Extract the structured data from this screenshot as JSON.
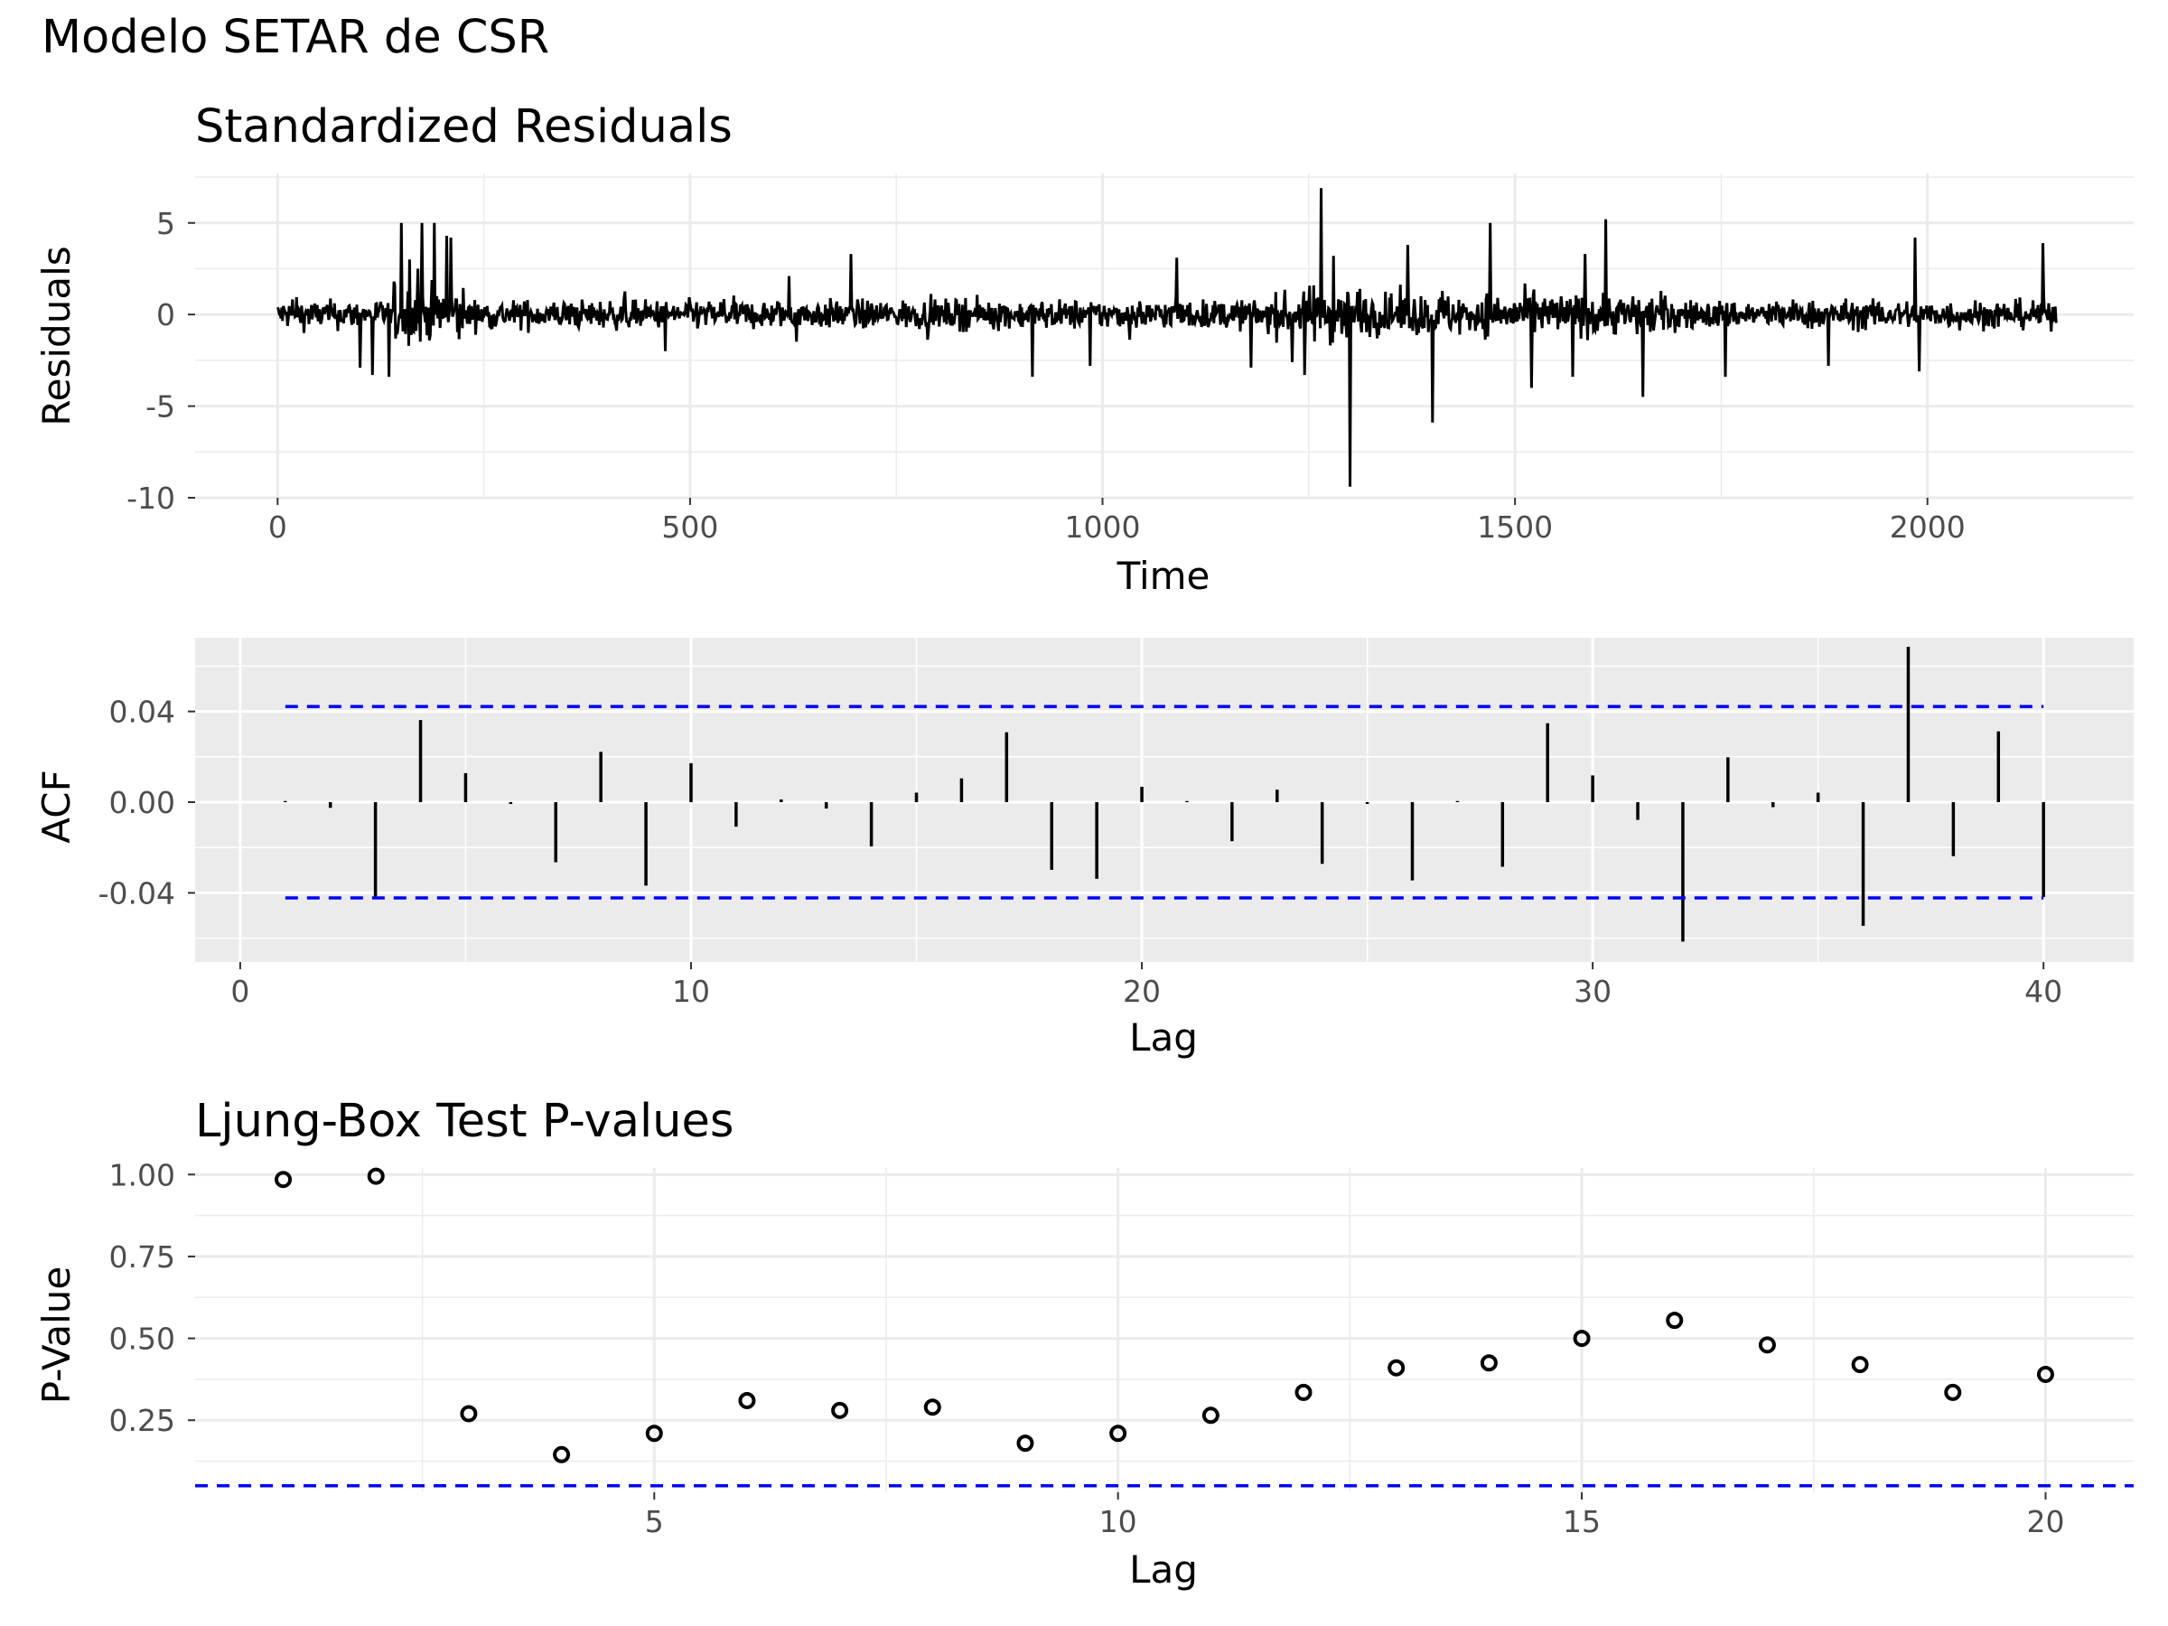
{
  "title": "Modelo SETAR de CSR",
  "chart_data": [
    {
      "type": "line",
      "title": "Standardized Residuals",
      "xlabel": "Time",
      "ylabel": "Residuals",
      "xlim": [
        -100,
        2250
      ],
      "ylim": [
        -10,
        7.7
      ],
      "xticks": [
        0,
        500,
        1000,
        1500,
        2000
      ],
      "xtick_labels": [
        "0",
        "500",
        "1000",
        "1500",
        "2000"
      ],
      "yticks": [
        -10,
        -5,
        0,
        5
      ],
      "ytick_labels": [
        "-10",
        "-5",
        "0",
        "5"
      ],
      "n": 2157,
      "series_note": "dense residual trace; notable points listed in spikes",
      "spikes": [
        [
          100,
          -2.9
        ],
        [
          115,
          -3.3
        ],
        [
          135,
          -3.4
        ],
        [
          150,
          -4.4
        ],
        [
          150,
          5.0
        ],
        [
          160,
          3.0
        ],
        [
          170,
          2.5
        ],
        [
          175,
          -3.5
        ],
        [
          175,
          5.0
        ],
        [
          190,
          5.0
        ],
        [
          205,
          4.3
        ],
        [
          210,
          4.2
        ],
        [
          470,
          -2.0
        ],
        [
          620,
          2.1
        ],
        [
          695,
          3.3
        ],
        [
          915,
          -3.4
        ],
        [
          985,
          -2.8
        ],
        [
          1090,
          3.1
        ],
        [
          1180,
          -2.9
        ],
        [
          1230,
          -2.6
        ],
        [
          1245,
          -3.3
        ],
        [
          1265,
          6.9
        ],
        [
          1280,
          3.2
        ],
        [
          1300,
          -9.4
        ],
        [
          1370,
          3.8
        ],
        [
          1400,
          -5.9
        ],
        [
          1470,
          5.0
        ],
        [
          1520,
          -4.0
        ],
        [
          1570,
          -3.4
        ],
        [
          1585,
          3.3
        ],
        [
          1610,
          5.2
        ],
        [
          1655,
          -4.5
        ],
        [
          1755,
          -3.4
        ],
        [
          1880,
          -2.8
        ],
        [
          1985,
          4.2
        ],
        [
          1990,
          -3.1
        ],
        [
          2140,
          3.9
        ]
      ],
      "grid": true
    },
    {
      "type": "bar",
      "title": "",
      "xlabel": "Lag",
      "ylabel": "ACF",
      "xlim": [
        -1,
        42
      ],
      "ylim": [
        -0.0705,
        0.0725
      ],
      "xticks": [
        0,
        10,
        20,
        30,
        40
      ],
      "xtick_labels": [
        "0",
        "10",
        "20",
        "30",
        "40"
      ],
      "yticks": [
        -0.04,
        0.0,
        0.04
      ],
      "ytick_labels": [
        "-0.04",
        "0.00",
        "0.04"
      ],
      "lags": [
        1,
        2,
        3,
        4,
        5,
        6,
        7,
        8,
        9,
        10,
        11,
        12,
        13,
        14,
        15,
        16,
        17,
        18,
        19,
        20,
        21,
        22,
        23,
        24,
        25,
        26,
        27,
        28,
        29,
        30,
        31,
        32,
        33,
        34,
        35,
        36,
        37,
        38,
        39,
        40
      ],
      "values": [
        0.0005,
        -0.0025,
        -0.0425,
        0.0362,
        0.0128,
        -0.0008,
        -0.0265,
        0.0222,
        -0.0368,
        0.0172,
        -0.0108,
        0.0012,
        -0.0028,
        -0.0195,
        0.0042,
        0.0105,
        0.0308,
        -0.0298,
        -0.0338,
        0.0068,
        0.0005,
        -0.0172,
        0.0055,
        -0.0272,
        -0.0008,
        -0.0345,
        0.0005,
        -0.0285,
        0.0348,
        0.0118,
        -0.0078,
        -0.0615,
        0.0198,
        -0.0022,
        0.0042,
        -0.0545,
        0.0685,
        -0.0238,
        0.0312,
        -0.0418
      ],
      "confidence_bounds": [
        -0.0422,
        0.0422
      ],
      "grid": true
    },
    {
      "type": "scatter",
      "title": "Ljung-Box Test P-values",
      "xlabel": "Lag",
      "ylabel": "P-Value",
      "xlim": [
        0.05,
        20.95
      ],
      "ylim": [
        0.03,
        1.02
      ],
      "xticks": [
        5,
        10,
        15,
        20
      ],
      "xtick_labels": [
        "5",
        "10",
        "15",
        "20"
      ],
      "yticks": [
        0.25,
        0.5,
        0.75,
        1.0
      ],
      "ytick_labels": [
        "0.25",
        "0.50",
        "0.75",
        "1.00"
      ],
      "x": [
        1,
        2,
        3,
        4,
        5,
        6,
        7,
        8,
        9,
        10,
        11,
        12,
        13,
        14,
        15,
        16,
        17,
        18,
        19,
        20
      ],
      "values": [
        0.985,
        0.995,
        0.27,
        0.145,
        0.21,
        0.31,
        0.28,
        0.29,
        0.18,
        0.21,
        0.265,
        0.335,
        0.41,
        0.425,
        0.5,
        0.555,
        0.48,
        0.42,
        0.335,
        0.39
      ],
      "reference_line": 0.05,
      "grid": true
    }
  ],
  "colors": {
    "line": "#000000",
    "bound": "#0000ff",
    "grid": "#ebebeb",
    "panel_grey": "#ebebeb",
    "grid_on_grey": "#ffffff",
    "tick_text": "#4d4d4d",
    "text": "#000000"
  }
}
